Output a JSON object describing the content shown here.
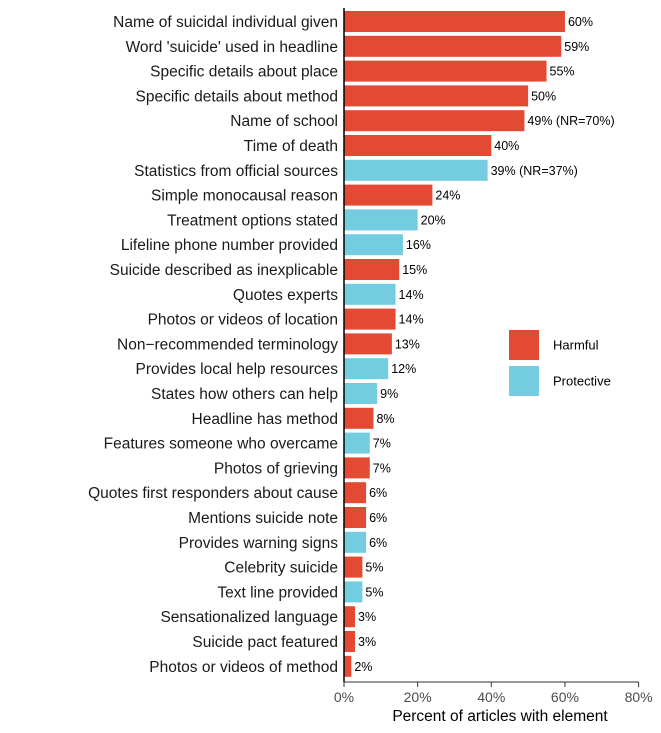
{
  "chart_data": {
    "type": "bar",
    "orientation": "horizontal",
    "xlabel": "Percent of articles with element",
    "xlim": [
      0,
      85
    ],
    "xticks": [
      0,
      20,
      40,
      60,
      80
    ],
    "xtick_labels": [
      "0%",
      "20%",
      "40%",
      "60%",
      "80%"
    ],
    "grid": false,
    "legend_position": "right",
    "legend": [
      {
        "name": "Harmful",
        "color": "#e34a33"
      },
      {
        "name": "Protective",
        "color": "#74cce0"
      }
    ],
    "bars": [
      {
        "category": "Name of suicidal individual given",
        "value": 60,
        "type": "Harmful",
        "label": "60%"
      },
      {
        "category": "Word 'suicide' used in headline",
        "value": 59,
        "type": "Harmful",
        "label": "59%"
      },
      {
        "category": "Specific details about place",
        "value": 55,
        "type": "Harmful",
        "label": "55%"
      },
      {
        "category": "Specific details about method",
        "value": 50,
        "type": "Harmful",
        "label": "50%"
      },
      {
        "category": "Name of school",
        "value": 49,
        "type": "Harmful",
        "label": "49% (NR=70%)"
      },
      {
        "category": "Time of death",
        "value": 40,
        "type": "Harmful",
        "label": "40%"
      },
      {
        "category": "Statistics from official sources",
        "value": 39,
        "type": "Protective",
        "label": "39% (NR=37%)"
      },
      {
        "category": "Simple monocausal reason",
        "value": 24,
        "type": "Harmful",
        "label": "24%"
      },
      {
        "category": "Treatment options stated",
        "value": 20,
        "type": "Protective",
        "label": "20%"
      },
      {
        "category": "Lifeline phone number provided",
        "value": 16,
        "type": "Protective",
        "label": "16%"
      },
      {
        "category": "Suicide described as inexplicable",
        "value": 15,
        "type": "Harmful",
        "label": "15%"
      },
      {
        "category": "Quotes experts",
        "value": 14,
        "type": "Protective",
        "label": "14%"
      },
      {
        "category": "Photos or videos of location",
        "value": 14,
        "type": "Harmful",
        "label": "14%"
      },
      {
        "category": "Non−recommended terminology",
        "value": 13,
        "type": "Harmful",
        "label": "13%"
      },
      {
        "category": "Provides local help resources",
        "value": 12,
        "type": "Protective",
        "label": "12%"
      },
      {
        "category": "States how others can help",
        "value": 9,
        "type": "Protective",
        "label": "9%"
      },
      {
        "category": "Headline has method",
        "value": 8,
        "type": "Harmful",
        "label": "8%"
      },
      {
        "category": "Features someone who overcame",
        "value": 7,
        "type": "Protective",
        "label": "7%"
      },
      {
        "category": "Photos of grieving",
        "value": 7,
        "type": "Harmful",
        "label": "7%"
      },
      {
        "category": "Quotes first responders about cause",
        "value": 6,
        "type": "Harmful",
        "label": "6%"
      },
      {
        "category": "Mentions suicide note",
        "value": 6,
        "type": "Harmful",
        "label": "6%"
      },
      {
        "category": "Provides warning signs",
        "value": 6,
        "type": "Protective",
        "label": "6%"
      },
      {
        "category": "Celebrity suicide",
        "value": 5,
        "type": "Harmful",
        "label": "5%"
      },
      {
        "category": "Text line provided",
        "value": 5,
        "type": "Protective",
        "label": "5%"
      },
      {
        "category": "Sensationalized language",
        "value": 3,
        "type": "Harmful",
        "label": "3%"
      },
      {
        "category": "Suicide pact featured",
        "value": 3,
        "type": "Harmful",
        "label": "3%"
      },
      {
        "category": "Photos or videos of method",
        "value": 2,
        "type": "Harmful",
        "label": "2%"
      }
    ]
  }
}
